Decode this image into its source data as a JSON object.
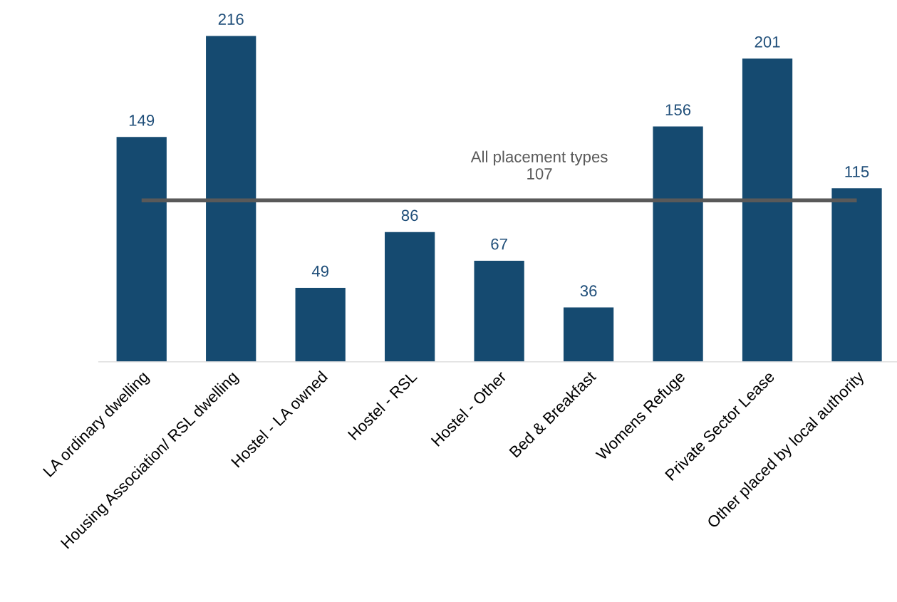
{
  "chart_data": {
    "type": "bar",
    "categories": [
      "LA ordinary dwelling",
      "Housing Association/ RSL dwelling",
      "Hostel - LA owned",
      "Hostel - RSL",
      "Hostel - Other",
      "Bed & Breakfast",
      "Womens Refuge",
      "Private Sector Lease",
      "Other placed by local authority"
    ],
    "values": [
      149,
      216,
      49,
      86,
      67,
      36,
      156,
      201,
      115
    ],
    "color": "#154a70",
    "data_labels": true,
    "ref_lines": [
      {
        "axis": "y",
        "value": 107,
        "label": "All placement types\n107",
        "color": "#595959"
      }
    ],
    "grid": false,
    "legend": false
  }
}
